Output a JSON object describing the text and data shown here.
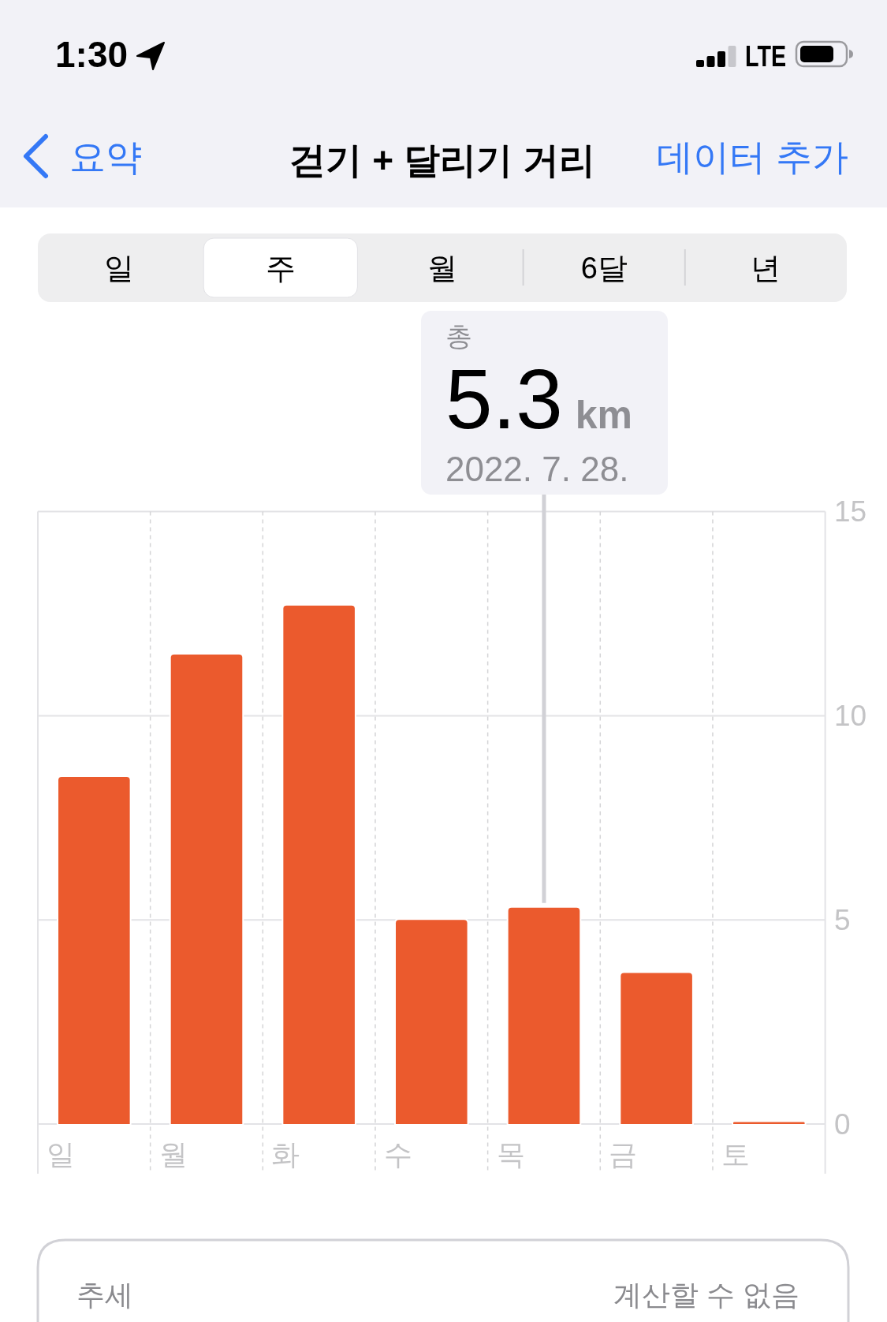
{
  "chart_data": {
    "type": "bar",
    "title": "걷기 + 달리기 거리",
    "categories": [
      "일",
      "월",
      "화",
      "수",
      "목",
      "금",
      "토"
    ],
    "values": [
      8.5,
      11.5,
      12.7,
      5,
      5.3,
      3.7,
      0.05
    ],
    "color": "#eb5a2d",
    "value_labels": [
      null,
      null,
      null,
      null,
      "5.3",
      null,
      null
    ],
    "ylim": [
      0,
      15
    ],
    "yticks": [
      0,
      5,
      10,
      15
    ],
    "grid": true,
    "ref_lines": [
      {
        "axis": "x",
        "value": "목",
        "color": "#d1d1d6"
      }
    ],
    "annotations": [
      "1:30",
      "LTE",
      "요약",
      "데이터 추가",
      "일",
      "주",
      "월",
      "6달",
      "년",
      "총",
      "km",
      "2022. 7. 28.",
      "추세",
      "계산할 수 없음"
    ]
  }
}
